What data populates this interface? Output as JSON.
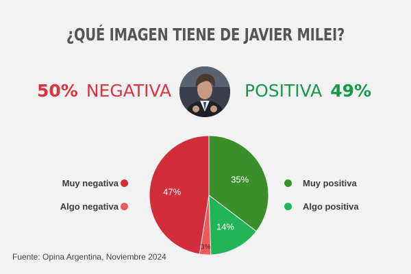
{
  "title": "¿QUÉ IMAGEN TIENE DE JAVIER MILEI?",
  "summary": {
    "negative": {
      "pct": "50%",
      "label": "NEGATIVA",
      "color": "#d9343f"
    },
    "positive": {
      "pct": "49%",
      "label": "POSITIVA",
      "color": "#17994a"
    }
  },
  "source": "Fuente: Opina Argentina, Noviembre 2024",
  "chart_data": {
    "type": "pie",
    "title": "¿QUÉ IMAGEN TIENE DE JAVIER MILEI?",
    "start": "12 o'clock",
    "direction": "clockwise",
    "slices": [
      {
        "name": "Muy positiva",
        "value": 35,
        "label": "35%",
        "color": "#3a8f2c"
      },
      {
        "name": "Algo positiva",
        "value": 14,
        "label": "14%",
        "color": "#22b557"
      },
      {
        "name": "Algo negativa",
        "value": 3,
        "label": "3%",
        "color": "#ec5b5b"
      },
      {
        "name": "Muy negativa",
        "value": 47,
        "label": "47%",
        "color": "#d22d3b"
      }
    ],
    "legend_left": [
      "Muy negativa",
      "Algo negativa"
    ],
    "legend_right": [
      "Muy positiva",
      "Algo positiva"
    ]
  }
}
